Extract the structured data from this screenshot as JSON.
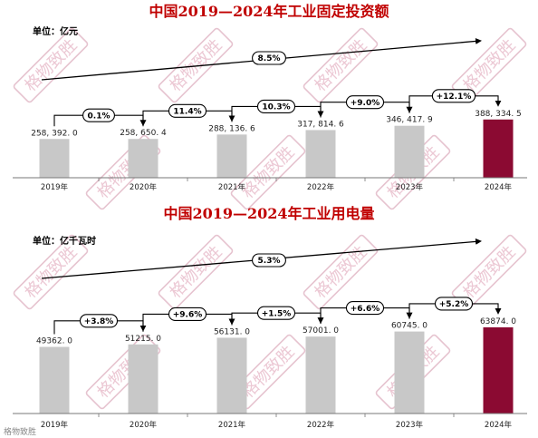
{
  "colors": {
    "title": "#c00000",
    "bar": "#c8c8c8",
    "highlight": "#8b0a32",
    "watermark": "#e6c3cf"
  },
  "watermark_text": "格物致胜",
  "footer_brand": "格物致胜",
  "chart_data": [
    {
      "type": "bar",
      "title": "中国2019—2024年工业固定投资额",
      "unit_label": "单位：亿元",
      "categories": [
        "2019年",
        "2020年",
        "2021年",
        "2022年",
        "2023年",
        "2024年"
      ],
      "values": [
        258392.0,
        258650.4,
        288136.6,
        317814.6,
        346417.9,
        388334.5
      ],
      "value_labels": [
        "258, 392. 0",
        "258, 650. 4",
        "288, 136. 6",
        "317, 814. 6",
        "346, 417. 9",
        "388, 334. 5"
      ],
      "highlight_index": 5,
      "growth_labels": [
        "0.1%",
        "11.4%",
        "10.3%",
        "+9.0%",
        "+12.1%"
      ],
      "overall_growth": "8.5%",
      "ylim": [
        0,
        520000
      ],
      "grid": false
    },
    {
      "type": "bar",
      "title": "中国2019—2024年工业用电量",
      "unit_label": "单位：亿千瓦时",
      "categories": [
        "2019年",
        "2020年",
        "2021年",
        "2022年",
        "2023年",
        "2024年"
      ],
      "values": [
        49362.0,
        51215.0,
        56131.0,
        57001.0,
        60745.0,
        63874.0
      ],
      "value_labels": [
        "49362. 0",
        "51215. 0",
        "56131. 0",
        "57001. 0",
        "60745. 0",
        "63874. 0"
      ],
      "highlight_index": 5,
      "growth_labels": [
        "+3.8%",
        "+9.6%",
        "+1.5%",
        "+6.6%",
        "+5.2%"
      ],
      "overall_growth": "5.3%",
      "ylim": [
        0,
        86000
      ],
      "grid": false
    }
  ]
}
